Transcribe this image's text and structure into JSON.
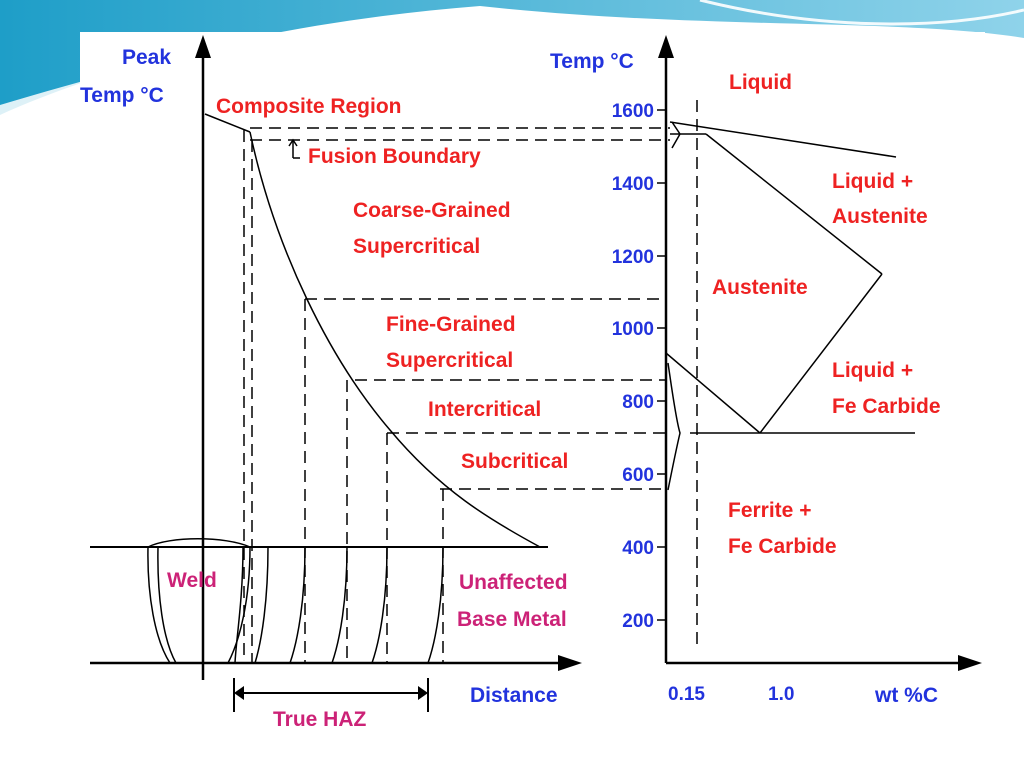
{
  "colors": {
    "label_red": "#ee2222",
    "axis_blue": "#2233dd",
    "zone_magenta": "#cc2277",
    "slide_teal": "#1e9ec8",
    "line": "#000000"
  },
  "left_diagram": {
    "y_axis_title_line1": "Peak",
    "y_axis_title_line2": "Temp °C",
    "x_axis_title": "Distance",
    "regions": {
      "composite": "Composite Region",
      "fusion": "Fusion Boundary",
      "coarse_line1": "Coarse-Grained",
      "coarse_line2": "Supercritical",
      "fine_line1": "Fine-Grained",
      "fine_line2": "Supercritical",
      "intercritical": "Intercritical",
      "subcritical": "Subcritical"
    },
    "zones": {
      "weld": "Weld",
      "unaffected_line1": "Unaffected",
      "unaffected_line2": "Base Metal",
      "true_haz": "True HAZ"
    }
  },
  "right_diagram": {
    "y_axis_title": "Temp °C",
    "x_axis_title": "wt %C",
    "y_ticks": [
      "1600",
      "1400",
      "1200",
      "1000",
      "800",
      "600",
      "400",
      "200"
    ],
    "x_ticks": [
      "0.15",
      "1.0"
    ],
    "phases": {
      "liquid": "Liquid",
      "liq_aus_line1": "Liquid +",
      "liq_aus_line2": "Austenite",
      "austenite": "Austenite",
      "liq_fe_line1": "Liquid +",
      "liq_fe_line2": "Fe Carbide",
      "ferrite_line1": "Ferrite +",
      "ferrite_line2": "Fe Carbide"
    }
  }
}
